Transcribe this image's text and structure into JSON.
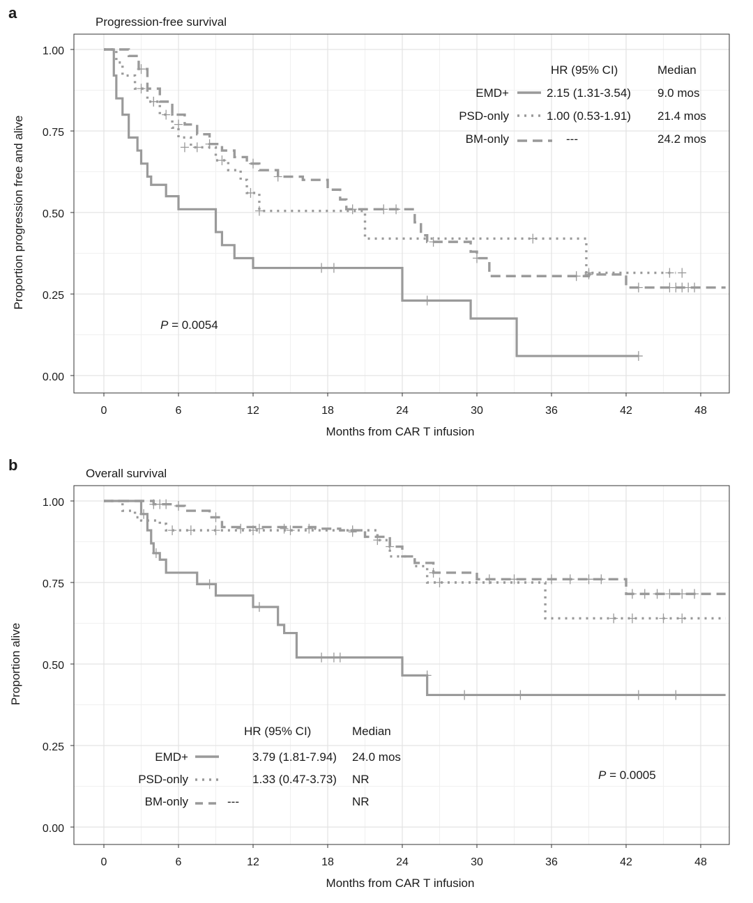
{
  "chart_data": [
    {
      "type": "line",
      "panel": "a",
      "title": "Progression-free survival",
      "xlabel": "Months from CAR T infusion",
      "ylabel": "Proportion progression free and alive",
      "xlim": [
        0,
        48
      ],
      "ylim": [
        0,
        1
      ],
      "xticks": [
        "0",
        "6",
        "12",
        "18",
        "24",
        "30",
        "36",
        "42",
        "48"
      ],
      "yticks": [
        "0.00",
        "0.25",
        "0.50",
        "0.75",
        "1.00"
      ],
      "pvalue": "P = 0.0054",
      "legend": {
        "hr_header": "HR (95% CI)",
        "median_header": "Median",
        "rows": [
          {
            "name": "EMD+",
            "style": "solid",
            "hr": "2.15 (1.31-3.54)",
            "median": "9.0 mos"
          },
          {
            "name": "PSD-only",
            "style": "dotted",
            "hr": "1.00 (0.53-1.91)",
            "median": "21.4 mos"
          },
          {
            "name": "BM-only",
            "style": "dashed",
            "hr": "---",
            "median": "24.2 mos"
          }
        ]
      },
      "series": [
        {
          "name": "EMD+",
          "style": "solid",
          "steps": [
            [
              0,
              1.0
            ],
            [
              0.8,
              0.92
            ],
            [
              1.0,
              0.85
            ],
            [
              1.5,
              0.8
            ],
            [
              2.0,
              0.73
            ],
            [
              2.7,
              0.69
            ],
            [
              3.0,
              0.65
            ],
            [
              3.5,
              0.61
            ],
            [
              3.8,
              0.585
            ],
            [
              4.5,
              0.585
            ],
            [
              5.0,
              0.55
            ],
            [
              6.0,
              0.51
            ],
            [
              8.0,
              0.51
            ],
            [
              9.0,
              0.44
            ],
            [
              9.5,
              0.4
            ],
            [
              10.5,
              0.36
            ],
            [
              12.0,
              0.33
            ],
            [
              24.0,
              0.23
            ],
            [
              29.5,
              0.175
            ],
            [
              33.2,
              0.06
            ],
            [
              43.0,
              0.06
            ]
          ],
          "censors": [
            [
              17.5,
              0.33
            ],
            [
              18.5,
              0.33
            ],
            [
              26.0,
              0.23
            ],
            [
              43.0,
              0.06
            ]
          ]
        },
        {
          "name": "PSD-only",
          "style": "dotted",
          "steps": [
            [
              0,
              1.0
            ],
            [
              1.0,
              0.96
            ],
            [
              1.5,
              0.92
            ],
            [
              2.5,
              0.88
            ],
            [
              3.5,
              0.84
            ],
            [
              4.5,
              0.8
            ],
            [
              5.5,
              0.76
            ],
            [
              6.0,
              0.73
            ],
            [
              7.0,
              0.7
            ],
            [
              9.0,
              0.66
            ],
            [
              10.0,
              0.63
            ],
            [
              11.0,
              0.6
            ],
            [
              11.5,
              0.56
            ],
            [
              12.5,
              0.505
            ],
            [
              21.0,
              0.42
            ],
            [
              38.8,
              0.315
            ],
            [
              46.0,
              0.315
            ]
          ],
          "censors": [
            [
              3.0,
              0.88
            ],
            [
              4.0,
              0.84
            ],
            [
              5.0,
              0.8
            ],
            [
              6.5,
              0.7
            ],
            [
              7.5,
              0.7
            ],
            [
              9.5,
              0.66
            ],
            [
              11.8,
              0.56
            ],
            [
              12.5,
              0.505
            ],
            [
              34.5,
              0.42
            ],
            [
              39.0,
              0.315
            ],
            [
              45.5,
              0.315
            ],
            [
              46.5,
              0.315
            ]
          ]
        },
        {
          "name": "BM-only",
          "style": "dashed",
          "steps": [
            [
              0,
              1.0
            ],
            [
              2.0,
              0.98
            ],
            [
              2.8,
              0.94
            ],
            [
              3.5,
              0.88
            ],
            [
              4.5,
              0.84
            ],
            [
              5.5,
              0.8
            ],
            [
              6.5,
              0.77
            ],
            [
              7.5,
              0.74
            ],
            [
              8.5,
              0.71
            ],
            [
              9.5,
              0.69
            ],
            [
              10.5,
              0.67
            ],
            [
              11.5,
              0.65
            ],
            [
              12.5,
              0.63
            ],
            [
              14.0,
              0.61
            ],
            [
              16.0,
              0.6
            ],
            [
              18.0,
              0.57
            ],
            [
              19.0,
              0.54
            ],
            [
              19.5,
              0.51
            ],
            [
              23.0,
              0.51
            ],
            [
              25.0,
              0.47
            ],
            [
              25.5,
              0.43
            ],
            [
              26.0,
              0.41
            ],
            [
              29.5,
              0.38
            ],
            [
              30.0,
              0.36
            ],
            [
              31.0,
              0.305
            ],
            [
              38.5,
              0.305
            ],
            [
              39.0,
              0.31
            ],
            [
              42.0,
              0.27
            ],
            [
              50.0,
              0.27
            ]
          ],
          "censors": [
            [
              3.0,
              0.94
            ],
            [
              4.0,
              0.84
            ],
            [
              6.0,
              0.77
            ],
            [
              8.5,
              0.71
            ],
            [
              12.0,
              0.65
            ],
            [
              14.0,
              0.61
            ],
            [
              20.0,
              0.51
            ],
            [
              22.5,
              0.51
            ],
            [
              23.5,
              0.51
            ],
            [
              26.5,
              0.41
            ],
            [
              30.0,
              0.36
            ],
            [
              38.0,
              0.305
            ],
            [
              39.0,
              0.31
            ],
            [
              43.0,
              0.27
            ],
            [
              45.5,
              0.27
            ],
            [
              46.0,
              0.27
            ],
            [
              46.5,
              0.27
            ],
            [
              47.0,
              0.27
            ],
            [
              47.5,
              0.27
            ]
          ]
        }
      ]
    },
    {
      "type": "line",
      "panel": "b",
      "title": "Overall survival",
      "xlabel": "Months from CAR T infusion",
      "ylabel": "Proportion alive",
      "xlim": [
        0,
        48
      ],
      "ylim": [
        0,
        1
      ],
      "xticks": [
        "0",
        "6",
        "12",
        "18",
        "24",
        "30",
        "36",
        "42",
        "48"
      ],
      "yticks": [
        "0.00",
        "0.25",
        "0.50",
        "0.75",
        "1.00"
      ],
      "pvalue": "P = 0.0005",
      "legend": {
        "hr_header": "HR (95% CI)",
        "median_header": "Median",
        "rows": [
          {
            "name": "EMD+",
            "style": "solid",
            "hr": "3.79 (1.81-7.94)",
            "median": "24.0 mos"
          },
          {
            "name": "PSD-only",
            "style": "dotted",
            "hr": "1.33 (0.47-3.73)",
            "median": "NR"
          },
          {
            "name": "BM-only",
            "style": "dashed",
            "hr": "---",
            "median": "NR"
          }
        ]
      },
      "series": [
        {
          "name": "EMD+",
          "style": "solid",
          "steps": [
            [
              0,
              1.0
            ],
            [
              3.0,
              0.96
            ],
            [
              3.5,
              0.91
            ],
            [
              3.8,
              0.87
            ],
            [
              4.0,
              0.84
            ],
            [
              4.5,
              0.82
            ],
            [
              5.0,
              0.78
            ],
            [
              7.5,
              0.745
            ],
            [
              9.0,
              0.71
            ],
            [
              12.0,
              0.675
            ],
            [
              14.0,
              0.62
            ],
            [
              14.5,
              0.595
            ],
            [
              15.5,
              0.52
            ],
            [
              24.0,
              0.465
            ],
            [
              26.0,
              0.405
            ],
            [
              50.0,
              0.405
            ]
          ],
          "censors": [
            [
              3.2,
              0.96
            ],
            [
              4.2,
              0.84
            ],
            [
              8.5,
              0.745
            ],
            [
              12.5,
              0.675
            ],
            [
              17.5,
              0.52
            ],
            [
              18.5,
              0.52
            ],
            [
              19.0,
              0.52
            ],
            [
              26.0,
              0.465
            ],
            [
              29.0,
              0.405
            ],
            [
              33.5,
              0.405
            ],
            [
              43.0,
              0.405
            ],
            [
              46.0,
              0.405
            ]
          ]
        },
        {
          "name": "PSD-only",
          "style": "dotted",
          "steps": [
            [
              0,
              1.0
            ],
            [
              1.5,
              0.97
            ],
            [
              2.5,
              0.95
            ],
            [
              3.0,
              0.94
            ],
            [
              4.5,
              0.93
            ],
            [
              5.0,
              0.91
            ],
            [
              22.0,
              0.88
            ],
            [
              23.0,
              0.83
            ],
            [
              25.0,
              0.8
            ],
            [
              26.0,
              0.75
            ],
            [
              35.5,
              0.64
            ],
            [
              50.0,
              0.64
            ]
          ],
          "censors": [
            [
              5.5,
              0.91
            ],
            [
              7.0,
              0.91
            ],
            [
              9.0,
              0.91
            ],
            [
              12.0,
              0.91
            ],
            [
              15.0,
              0.91
            ],
            [
              20.0,
              0.91
            ],
            [
              27.0,
              0.75
            ],
            [
              41.0,
              0.64
            ],
            [
              42.5,
              0.64
            ],
            [
              45.0,
              0.64
            ],
            [
              46.5,
              0.64
            ]
          ]
        },
        {
          "name": "BM-only",
          "style": "dashed",
          "steps": [
            [
              0,
              1.0
            ],
            [
              4.0,
              0.99
            ],
            [
              5.5,
              0.985
            ],
            [
              6.5,
              0.97
            ],
            [
              8.5,
              0.95
            ],
            [
              9.5,
              0.92
            ],
            [
              17.0,
              0.915
            ],
            [
              19.0,
              0.91
            ],
            [
              21.0,
              0.89
            ],
            [
              23.0,
              0.86
            ],
            [
              24.0,
              0.83
            ],
            [
              25.0,
              0.81
            ],
            [
              26.5,
              0.78
            ],
            [
              30.0,
              0.76
            ],
            [
              42.0,
              0.715
            ],
            [
              50.0,
              0.715
            ]
          ],
          "censors": [
            [
              4.0,
              0.99
            ],
            [
              4.5,
              0.99
            ],
            [
              5.0,
              0.99
            ],
            [
              6.0,
              0.985
            ],
            [
              9.0,
              0.95
            ],
            [
              11.0,
              0.915
            ],
            [
              12.5,
              0.915
            ],
            [
              14.5,
              0.915
            ],
            [
              16.5,
              0.915
            ],
            [
              20.0,
              0.905
            ],
            [
              22.0,
              0.88
            ],
            [
              23.0,
              0.86
            ],
            [
              26.5,
              0.78
            ],
            [
              31.0,
              0.76
            ],
            [
              33.0,
              0.76
            ],
            [
              36.0,
              0.76
            ],
            [
              37.5,
              0.76
            ],
            [
              39.0,
              0.76
            ],
            [
              40.0,
              0.76
            ],
            [
              42.5,
              0.715
            ],
            [
              43.5,
              0.715
            ],
            [
              44.5,
              0.715
            ],
            [
              45.5,
              0.715
            ],
            [
              46.5,
              0.715
            ],
            [
              47.5,
              0.715
            ]
          ]
        }
      ]
    }
  ]
}
